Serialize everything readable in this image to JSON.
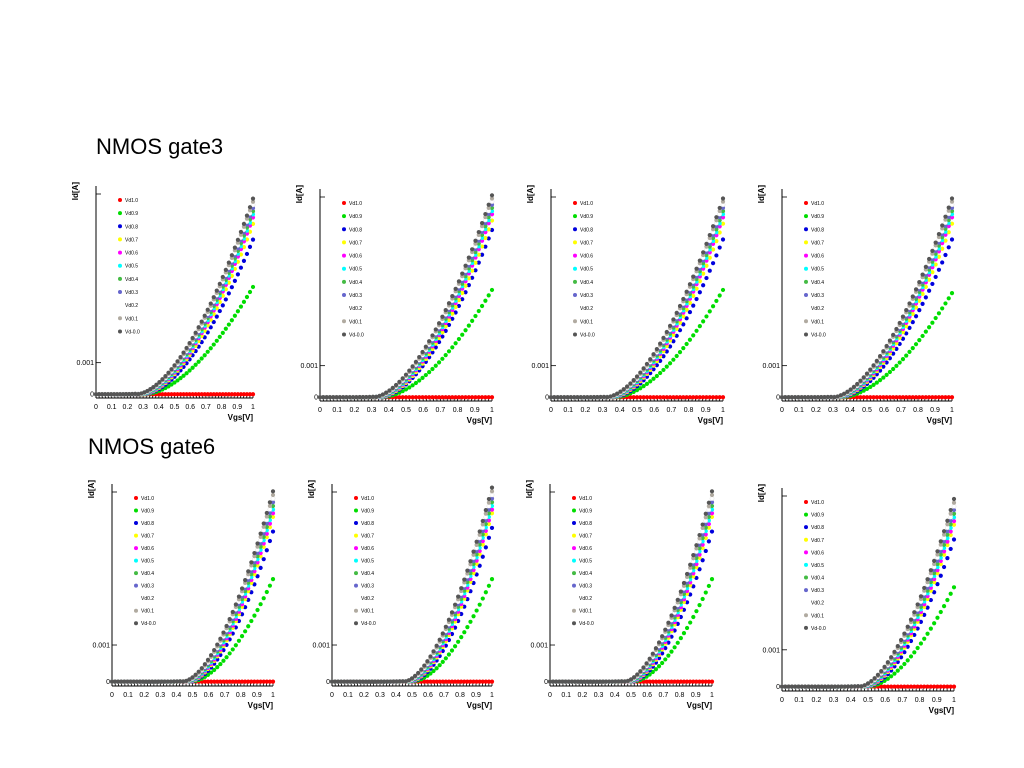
{
  "sections": [
    {
      "title": "NMOS gate3"
    },
    {
      "title": "NMOS gate6"
    }
  ],
  "colors": {
    "Vd1.0": "#ff0000",
    "Vd0.9": "#00dd00",
    "Vd0.8": "#0000dd",
    "Vd0.7": "#ffff00",
    "Vd0.6": "#ff00ff",
    "Vd0.5": "#00ffff",
    "Vd0.4": "#44bb44",
    "Vd0.3": "#6666cc",
    "Vd0.2": "#ffffff",
    "Vd0.1": "#b0aaa0",
    "Vd-0.0": "#555555"
  },
  "chart_data": [
    {
      "type": "scatter",
      "section": "NMOS gate3",
      "xlabel": "Vgs[V]",
      "ylabel": "Id[A]",
      "xlim": [
        0,
        1
      ],
      "ylim": [
        -0.00012,
        0.0066
      ],
      "xticks": [
        "0",
        "0.1",
        "0.2",
        "0.3",
        "0.4",
        "0.5",
        "0.6",
        "0.7",
        "0.8",
        "0.9",
        "1"
      ],
      "yticks": [
        {
          "value": 0.001,
          "label": "0.001"
        },
        {
          "value": 0,
          "label": "0"
        }
      ],
      "legend": [
        "Vd1.0",
        "Vd0.9",
        "Vd0.8",
        "Vd0.7",
        "Vd0.6",
        "Vd0.5",
        "Vd0.4",
        "Vd0.3",
        "Vd0.2",
        "Vd0.1",
        "Vd-0.0"
      ],
      "legend_position": "top-left",
      "threshold_vgs": 0.32,
      "series": [
        {
          "name": "Vd1.0",
          "max_at_1v": 0.0
        },
        {
          "name": "Vd0.9",
          "max_at_1v": 0.0034
        },
        {
          "name": "Vd0.8",
          "max_at_1v": 0.0049
        },
        {
          "name": "Vd0.7",
          "max_at_1v": 0.0054
        },
        {
          "name": "Vd0.6",
          "max_at_1v": 0.0056
        },
        {
          "name": "Vd0.5",
          "max_at_1v": 0.0057
        },
        {
          "name": "Vd0.4",
          "max_at_1v": 0.0058
        },
        {
          "name": "Vd0.3",
          "max_at_1v": 0.0059
        },
        {
          "name": "Vd0.2",
          "max_at_1v": 0.006
        },
        {
          "name": "Vd0.1",
          "max_at_1v": 0.0061
        },
        {
          "name": "Vd-0.0",
          "max_at_1v": 0.0062
        }
      ]
    },
    {
      "type": "scatter",
      "section": "NMOS gate3",
      "xlabel": "Vgs[V]",
      "ylabel": "Id[A]",
      "xlim": [
        0,
        1
      ],
      "ylim": [
        -0.00012,
        0.0066
      ],
      "xticks": [
        "0",
        "0.1",
        "0.2",
        "0.3",
        "0.4",
        "0.5",
        "0.6",
        "0.7",
        "0.8",
        "0.9",
        "1"
      ],
      "yticks": [
        {
          "value": 0.001,
          "label": "0.001"
        },
        {
          "value": 0,
          "label": "0"
        }
      ],
      "legend": [
        "Vd1.0",
        "Vd0.9",
        "Vd0.8",
        "Vd0.7",
        "Vd0.6",
        "Vd0.5",
        "Vd0.4",
        "Vd0.3",
        "Vd0.2",
        "Vd0.1",
        "Vd-0.0"
      ],
      "legend_position": "top-left",
      "threshold_vgs": 0.37,
      "series": [
        {
          "name": "Vd1.0",
          "max_at_1v": 0.0
        },
        {
          "name": "Vd0.9",
          "max_at_1v": 0.0034
        },
        {
          "name": "Vd0.8",
          "max_at_1v": 0.0053
        },
        {
          "name": "Vd0.7",
          "max_at_1v": 0.0056
        },
        {
          "name": "Vd0.6",
          "max_at_1v": 0.0058
        },
        {
          "name": "Vd0.5",
          "max_at_1v": 0.0059
        },
        {
          "name": "Vd0.4",
          "max_at_1v": 0.006
        },
        {
          "name": "Vd0.3",
          "max_at_1v": 0.0061
        },
        {
          "name": "Vd0.2",
          "max_at_1v": 0.0062
        },
        {
          "name": "Vd0.1",
          "max_at_1v": 0.0063
        },
        {
          "name": "Vd-0.0",
          "max_at_1v": 0.0064
        }
      ]
    },
    {
      "type": "scatter",
      "section": "NMOS gate3",
      "xlabel": "Vgs[V]",
      "ylabel": "Id[A]",
      "xlim": [
        0,
        1
      ],
      "ylim": [
        -0.00012,
        0.0066
      ],
      "xticks": [
        "0",
        "0.1",
        "0.2",
        "0.3",
        "0.4",
        "0.5",
        "0.6",
        "0.7",
        "0.8",
        "0.9",
        "1"
      ],
      "yticks": [
        {
          "value": 0.001,
          "label": "0.001"
        },
        {
          "value": 0,
          "label": "0"
        }
      ],
      "legend": [
        "Vd1.0",
        "Vd0.9",
        "Vd0.8",
        "Vd0.7",
        "Vd0.6",
        "Vd0.5",
        "Vd0.4",
        "Vd0.3",
        "Vd0.2",
        "Vd0.1",
        "Vd-0.0"
      ],
      "legend_position": "top-left",
      "threshold_vgs": 0.38,
      "series": [
        {
          "name": "Vd1.0",
          "max_at_1v": 0.0
        },
        {
          "name": "Vd0.9",
          "max_at_1v": 0.0034
        },
        {
          "name": "Vd0.8",
          "max_at_1v": 0.005
        },
        {
          "name": "Vd0.7",
          "max_at_1v": 0.0055
        },
        {
          "name": "Vd0.6",
          "max_at_1v": 0.0057
        },
        {
          "name": "Vd0.5",
          "max_at_1v": 0.0058
        },
        {
          "name": "Vd0.4",
          "max_at_1v": 0.0059
        },
        {
          "name": "Vd0.3",
          "max_at_1v": 0.006
        },
        {
          "name": "Vd0.2",
          "max_at_1v": 0.0061
        },
        {
          "name": "Vd0.1",
          "max_at_1v": 0.0062
        },
        {
          "name": "Vd-0.0",
          "max_at_1v": 0.0063
        }
      ]
    },
    {
      "type": "scatter",
      "section": "NMOS gate3",
      "xlabel": "Vgs[V]",
      "ylabel": "Id[A]",
      "xlim": [
        0,
        1
      ],
      "ylim": [
        -0.00012,
        0.0066
      ],
      "xticks": [
        "0",
        "0.1",
        "0.2",
        "0.3",
        "0.4",
        "0.5",
        "0.6",
        "0.7",
        "0.8",
        "0.9",
        "1"
      ],
      "yticks": [
        {
          "value": 0.001,
          "label": "0.001"
        },
        {
          "value": 0,
          "label": "0"
        }
      ],
      "legend": [
        "Vd1.0",
        "Vd0.9",
        "Vd0.8",
        "Vd0.7",
        "Vd0.6",
        "Vd0.5",
        "Vd0.4",
        "Vd0.3",
        "Vd0.2",
        "Vd0.1",
        "Vd-0.0"
      ],
      "legend_position": "top-left",
      "threshold_vgs": 0.36,
      "series": [
        {
          "name": "Vd1.0",
          "max_at_1v": 0.0
        },
        {
          "name": "Vd0.9",
          "max_at_1v": 0.0033
        },
        {
          "name": "Vd0.8",
          "max_at_1v": 0.005
        },
        {
          "name": "Vd0.7",
          "max_at_1v": 0.0055
        },
        {
          "name": "Vd0.6",
          "max_at_1v": 0.0057
        },
        {
          "name": "Vd0.5",
          "max_at_1v": 0.0058
        },
        {
          "name": "Vd0.4",
          "max_at_1v": 0.0059
        },
        {
          "name": "Vd0.3",
          "max_at_1v": 0.006
        },
        {
          "name": "Vd0.2",
          "max_at_1v": 0.0061
        },
        {
          "name": "Vd0.1",
          "max_at_1v": 0.0062
        },
        {
          "name": "Vd-0.0",
          "max_at_1v": 0.0063
        }
      ]
    },
    {
      "type": "scatter",
      "section": "NMOS gate6",
      "xlabel": "Vgs[V]",
      "ylabel": "Id[A]",
      "xlim": [
        0,
        1
      ],
      "ylim": [
        -0.00012,
        0.0054
      ],
      "xticks": [
        "0",
        "0.1",
        "0.2",
        "0.3",
        "0.4",
        "0.5",
        "0.6",
        "0.7",
        "0.8",
        "0.9",
        "1"
      ],
      "yticks": [
        {
          "value": 0.001,
          "label": "0.001"
        },
        {
          "value": 0,
          "label": "0"
        }
      ],
      "legend": [
        "Vd1.0",
        "Vd0.9",
        "Vd0.8",
        "Vd0.7",
        "Vd0.6",
        "Vd0.5",
        "Vd0.4",
        "Vd0.3",
        "Vd0.2",
        "Vd0.1",
        "Vd-0.0"
      ],
      "legend_position": "top-left",
      "threshold_vgs": 0.5,
      "series": [
        {
          "name": "Vd1.0",
          "max_at_1v": 0.0
        },
        {
          "name": "Vd0.9",
          "max_at_1v": 0.0028
        },
        {
          "name": "Vd0.8",
          "max_at_1v": 0.0041
        },
        {
          "name": "Vd0.7",
          "max_at_1v": 0.0045
        },
        {
          "name": "Vd0.6",
          "max_at_1v": 0.0046
        },
        {
          "name": "Vd0.5",
          "max_at_1v": 0.0047
        },
        {
          "name": "Vd0.4",
          "max_at_1v": 0.0048
        },
        {
          "name": "Vd0.3",
          "max_at_1v": 0.0049
        },
        {
          "name": "Vd0.2",
          "max_at_1v": 0.005
        },
        {
          "name": "Vd0.1",
          "max_at_1v": 0.0051
        },
        {
          "name": "Vd-0.0",
          "max_at_1v": 0.0052
        }
      ]
    },
    {
      "type": "scatter",
      "section": "NMOS gate6",
      "xlabel": "Vgs[V]",
      "ylabel": "Id[A]",
      "xlim": [
        0,
        1
      ],
      "ylim": [
        -0.00012,
        0.0054
      ],
      "xticks": [
        "0",
        "0.1",
        "0.2",
        "0.3",
        "0.4",
        "0.5",
        "0.6",
        "0.7",
        "0.8",
        "0.9",
        "1"
      ],
      "yticks": [
        {
          "value": 0.001,
          "label": "0.001"
        },
        {
          "value": 0,
          "label": "0"
        }
      ],
      "legend": [
        "Vd1.0",
        "Vd0.9",
        "Vd0.8",
        "Vd0.7",
        "Vd0.6",
        "Vd0.5",
        "Vd0.4",
        "Vd0.3",
        "Vd0.2",
        "Vd0.1",
        "Vd-0.0"
      ],
      "legend_position": "top-left",
      "threshold_vgs": 0.51,
      "series": [
        {
          "name": "Vd1.0",
          "max_at_1v": 0.0
        },
        {
          "name": "Vd0.9",
          "max_at_1v": 0.0028
        },
        {
          "name": "Vd0.8",
          "max_at_1v": 0.0042
        },
        {
          "name": "Vd0.7",
          "max_at_1v": 0.0046
        },
        {
          "name": "Vd0.6",
          "max_at_1v": 0.0047
        },
        {
          "name": "Vd0.5",
          "max_at_1v": 0.0048
        },
        {
          "name": "Vd0.4",
          "max_at_1v": 0.0049
        },
        {
          "name": "Vd0.3",
          "max_at_1v": 0.005
        },
        {
          "name": "Vd0.2",
          "max_at_1v": 0.0051
        },
        {
          "name": "Vd0.1",
          "max_at_1v": 0.0052
        },
        {
          "name": "Vd-0.0",
          "max_at_1v": 0.0053
        }
      ]
    },
    {
      "type": "scatter",
      "section": "NMOS gate6",
      "xlabel": "Vgs[V]",
      "ylabel": "Id[A]",
      "xlim": [
        0,
        1
      ],
      "ylim": [
        -0.00012,
        0.0054
      ],
      "xticks": [
        "0",
        "0.1",
        "0.2",
        "0.3",
        "0.4",
        "0.5",
        "0.6",
        "0.7",
        "0.8",
        "0.9",
        "1"
      ],
      "yticks": [
        {
          "value": 0.001,
          "label": "0.001"
        },
        {
          "value": 0,
          "label": "0"
        }
      ],
      "legend": [
        "Vd1.0",
        "Vd0.9",
        "Vd0.8",
        "Vd0.7",
        "Vd0.6",
        "Vd0.5",
        "Vd0.4",
        "Vd0.3",
        "Vd0.2",
        "Vd0.1",
        "Vd-0.0"
      ],
      "legend_position": "top-left",
      "threshold_vgs": 0.52,
      "series": [
        {
          "name": "Vd1.0",
          "max_at_1v": 0.0
        },
        {
          "name": "Vd0.9",
          "max_at_1v": 0.0028
        },
        {
          "name": "Vd0.8",
          "max_at_1v": 0.0041
        },
        {
          "name": "Vd0.7",
          "max_at_1v": 0.0045
        },
        {
          "name": "Vd0.6",
          "max_at_1v": 0.0046
        },
        {
          "name": "Vd0.5",
          "max_at_1v": 0.0047
        },
        {
          "name": "Vd0.4",
          "max_at_1v": 0.0048
        },
        {
          "name": "Vd0.3",
          "max_at_1v": 0.0049
        },
        {
          "name": "Vd0.2",
          "max_at_1v": 0.005
        },
        {
          "name": "Vd0.1",
          "max_at_1v": 0.0051
        },
        {
          "name": "Vd-0.0",
          "max_at_1v": 0.0052
        }
      ]
    },
    {
      "type": "scatter",
      "section": "NMOS gate6",
      "xlabel": "Vgs[V]",
      "ylabel": "Id[A]",
      "xlim": [
        0,
        1
      ],
      "ylim": [
        -0.00012,
        0.0054
      ],
      "xticks": [
        "0",
        "0.1",
        "0.2",
        "0.3",
        "0.4",
        "0.5",
        "0.6",
        "0.7",
        "0.8",
        "0.9",
        "1"
      ],
      "yticks": [
        {
          "value": 0.001,
          "label": "0.001"
        },
        {
          "value": 0,
          "label": "0"
        }
      ],
      "legend": [
        "Vd1.0",
        "Vd0.9",
        "Vd0.8",
        "Vd0.7",
        "Vd0.6",
        "Vd0.5",
        "Vd0.4",
        "Vd0.3",
        "Vd0.2",
        "Vd0.1",
        "Vd-0.0"
      ],
      "legend_position": "top-left",
      "threshold_vgs": 0.51,
      "series": [
        {
          "name": "Vd1.0",
          "max_at_1v": 0.0
        },
        {
          "name": "Vd0.9",
          "max_at_1v": 0.0027
        },
        {
          "name": "Vd0.8",
          "max_at_1v": 0.004
        },
        {
          "name": "Vd0.7",
          "max_at_1v": 0.0044
        },
        {
          "name": "Vd0.6",
          "max_at_1v": 0.0045
        },
        {
          "name": "Vd0.5",
          "max_at_1v": 0.0046
        },
        {
          "name": "Vd0.4",
          "max_at_1v": 0.0047
        },
        {
          "name": "Vd0.3",
          "max_at_1v": 0.0048
        },
        {
          "name": "Vd0.2",
          "max_at_1v": 0.0049
        },
        {
          "name": "Vd0.1",
          "max_at_1v": 0.005
        },
        {
          "name": "Vd-0.0",
          "max_at_1v": 0.0051
        }
      ]
    }
  ]
}
